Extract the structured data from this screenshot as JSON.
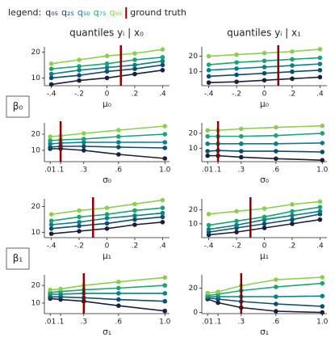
{
  "legend": {
    "title": "legend:",
    "ground_truth": "ground truth"
  },
  "column_titles": [
    "quantiles yᵢ | x₀",
    "quantiles yᵢ | x₁"
  ],
  "row_labels": [
    "β₀",
    "β₁"
  ],
  "chart_data": [
    {
      "type": "line",
      "xlabel": "μ₀",
      "x": [
        -0.4,
        -0.2,
        0,
        0.2,
        0.4
      ],
      "xlim": [
        -0.45,
        0.45
      ],
      "xticks": [
        {
          "value": -0.4,
          "label": "-.4"
        },
        {
          "value": -0.2,
          "label": "-.2"
        },
        0,
        {
          "value": 0.2,
          "label": ".2"
        },
        {
          "value": 0.4,
          "label": ".4"
        }
      ],
      "ylim": [
        7,
        22
      ],
      "yticks": [
        10,
        20
      ],
      "ground_truth": 0.1,
      "ground_truth_color": "#8b0000",
      "series": [
        {
          "name": "q₀₅",
          "color": "#1b1f3b",
          "values": [
            7.5,
            9,
            10,
            11.5,
            13
          ]
        },
        {
          "name": "q₂₅",
          "color": "#0d4e70",
          "values": [
            10,
            11,
            12.5,
            13.5,
            15
          ]
        },
        {
          "name": "q₅₀",
          "color": "#0a7f8a",
          "values": [
            11.5,
            13,
            14,
            15,
            16.5
          ]
        },
        {
          "name": "q₇₅",
          "color": "#17a673",
          "values": [
            13.5,
            14.5,
            15.5,
            17,
            18
          ]
        },
        {
          "name": "q₉₅",
          "color": "#8ccf4d",
          "values": [
            15.5,
            17,
            18.5,
            19.5,
            21
          ]
        }
      ]
    },
    {
      "type": "line",
      "xlabel": "μ₀",
      "x": [
        -0.4,
        -0.2,
        0,
        0.2,
        0.4
      ],
      "xlim": [
        -0.45,
        0.45
      ],
      "xticks": [
        {
          "value": -0.4,
          "label": "-.4"
        },
        {
          "value": -0.2,
          "label": "-.2"
        },
        0,
        {
          "value": 0.2,
          "label": ".2"
        },
        {
          "value": 0.4,
          "label": ".4"
        }
      ],
      "ylim": [
        1,
        26
      ],
      "yticks": [
        10,
        20
      ],
      "ground_truth": 0.1,
      "ground_truth_color": "#8b0000",
      "series": [
        {
          "name": "q₀₅",
          "color": "#1b1f3b",
          "values": [
            3,
            3.5,
            4.5,
            5.5,
            6.5
          ]
        },
        {
          "name": "q₂₅",
          "color": "#0d4e70",
          "values": [
            7,
            8,
            9,
            10,
            11
          ]
        },
        {
          "name": "q₅₀",
          "color": "#0a7f8a",
          "values": [
            11,
            12,
            13,
            14,
            15
          ]
        },
        {
          "name": "q₇₅",
          "color": "#17a673",
          "values": [
            14.5,
            16,
            17,
            18,
            19
          ]
        },
        {
          "name": "q₉₅",
          "color": "#8ccf4d",
          "values": [
            20,
            21,
            22,
            23,
            24.5
          ]
        }
      ]
    },
    {
      "type": "line",
      "xlabel": "σ₀",
      "x": [
        0.01,
        0.1,
        0.3,
        0.6,
        1.0
      ],
      "xlim": [
        -0.04,
        1.04
      ],
      "xticks": [
        {
          "value": 0.01,
          "label": ".01"
        },
        {
          "value": 0.1,
          "label": ".1"
        },
        {
          "value": 0.3,
          "label": ".3"
        },
        {
          "value": 0.6,
          "label": ".6"
        },
        {
          "value": 1.0,
          "label": "1.0"
        }
      ],
      "ylim": [
        3,
        27
      ],
      "yticks": [
        10,
        20
      ],
      "ground_truth": 0.1,
      "ground_truth_color": "#8b0000",
      "series": [
        {
          "name": "q₀₅",
          "color": "#1b1f3b",
          "values": [
            11,
            11,
            10,
            7.5,
            5
          ]
        },
        {
          "name": "q₂₅",
          "color": "#0d4e70",
          "values": [
            12,
            12.5,
            12.5,
            12,
            11.5
          ]
        },
        {
          "name": "q₅₀",
          "color": "#0a7f8a",
          "values": [
            14,
            14.5,
            15,
            15,
            15
          ]
        },
        {
          "name": "q₇₅",
          "color": "#17a673",
          "values": [
            16,
            16.5,
            17,
            18.5,
            20
          ]
        },
        {
          "name": "q₉₅",
          "color": "#8ccf4d",
          "values": [
            18.5,
            19,
            20.5,
            22.5,
            25
          ]
        }
      ]
    },
    {
      "type": "line",
      "xlabel": "σ₀",
      "x": [
        0.01,
        0.1,
        0.3,
        0.6,
        1.0
      ],
      "xlim": [
        -0.04,
        1.04
      ],
      "xticks": [
        {
          "value": 0.01,
          "label": ".01"
        },
        {
          "value": 0.1,
          "label": ".1"
        },
        {
          "value": 0.3,
          "label": ".3"
        },
        {
          "value": 0.6,
          "label": ".6"
        },
        {
          "value": 1.0,
          "label": "1.0"
        }
      ],
      "ylim": [
        1,
        27
      ],
      "yticks": [
        10,
        20
      ],
      "ground_truth": 0.1,
      "ground_truth_color": "#8b0000",
      "series": [
        {
          "name": "q₀₅",
          "color": "#1b1f3b",
          "values": [
            5,
            5,
            4,
            3,
            2
          ]
        },
        {
          "name": "q₂₅",
          "color": "#0d4e70",
          "values": [
            8,
            8.5,
            8,
            8,
            7.5
          ]
        },
        {
          "name": "q₅₀",
          "color": "#0a7f8a",
          "values": [
            13,
            13,
            13,
            13,
            13.5
          ]
        },
        {
          "name": "q₇₅",
          "color": "#17a673",
          "values": [
            18,
            18,
            18,
            18.5,
            20
          ]
        },
        {
          "name": "q₉₅",
          "color": "#8ccf4d",
          "values": [
            22,
            22,
            23,
            24,
            25
          ]
        }
      ]
    },
    {
      "type": "line",
      "xlabel": "μ₁",
      "x": [
        -0.4,
        -0.2,
        0,
        0.2,
        0.4
      ],
      "xlim": [
        -0.45,
        0.45
      ],
      "xticks": [
        {
          "value": -0.4,
          "label": "-.4"
        },
        {
          "value": -0.2,
          "label": "-.2"
        },
        0,
        {
          "value": 0.2,
          "label": ".2"
        },
        {
          "value": 0.4,
          "label": ".4"
        }
      ],
      "ylim": [
        8,
        23
      ],
      "yticks": [
        10,
        20
      ],
      "ground_truth": -0.1,
      "ground_truth_color": "#8b0000",
      "series": [
        {
          "name": "q₀₅",
          "color": "#1b1f3b",
          "values": [
            9.5,
            10.5,
            11.5,
            13,
            14
          ]
        },
        {
          "name": "q₂₅",
          "color": "#0d4e70",
          "values": [
            11.5,
            12.5,
            13.5,
            15,
            16
          ]
        },
        {
          "name": "q₅₀",
          "color": "#0a7f8a",
          "values": [
            13,
            14,
            15.5,
            16.5,
            17.5
          ]
        },
        {
          "name": "q₇₅",
          "color": "#17a673",
          "values": [
            14.5,
            16,
            17,
            18.5,
            19.5
          ]
        },
        {
          "name": "q₉₅",
          "color": "#8ccf4d",
          "values": [
            17,
            18.5,
            19.5,
            21,
            22.5
          ]
        }
      ]
    },
    {
      "type": "line",
      "xlabel": "μ₁",
      "x": [
        -0.4,
        -0.2,
        0,
        0.2,
        0.4
      ],
      "xlim": [
        -0.45,
        0.45
      ],
      "xticks": [
        {
          "value": -0.4,
          "label": "-.4"
        },
        {
          "value": -0.2,
          "label": "-.2"
        },
        0,
        {
          "value": 0.2,
          "label": ".2"
        },
        {
          "value": 0.4,
          "label": ".4"
        }
      ],
      "ylim": [
        0,
        28
      ],
      "yticks": [
        10,
        20
      ],
      "ground_truth": -0.1,
      "ground_truth_color": "#8b0000",
      "series": [
        {
          "name": "q₀₅",
          "color": "#1b1f3b",
          "values": [
            2,
            4,
            7,
            10,
            13
          ]
        },
        {
          "name": "q₂₅",
          "color": "#0d4e70",
          "values": [
            4,
            7,
            10,
            13,
            17
          ]
        },
        {
          "name": "q₅₀",
          "color": "#0a7f8a",
          "values": [
            6,
            9,
            13,
            16,
            19
          ]
        },
        {
          "name": "q₇₅",
          "color": "#17a673",
          "values": [
            9,
            12,
            15,
            19,
            22
          ]
        },
        {
          "name": "q₉₅",
          "color": "#8ccf4d",
          "values": [
            17,
            19,
            21,
            24,
            26
          ]
        }
      ]
    },
    {
      "type": "line",
      "xlabel": "σ₁",
      "x": [
        0.01,
        0.1,
        0.3,
        0.6,
        1.0
      ],
      "xlim": [
        -0.04,
        1.04
      ],
      "xticks": [
        {
          "value": 0.01,
          "label": ".01"
        },
        {
          "value": 0.1,
          "label": ".1"
        },
        {
          "value": 0.3,
          "label": ".3"
        },
        {
          "value": 0.6,
          "label": ".6"
        },
        {
          "value": 1.0,
          "label": "1.0"
        }
      ],
      "ylim": [
        4,
        26
      ],
      "yticks": [
        10,
        20
      ],
      "ground_truth": 0.3,
      "ground_truth_color": "#8b0000",
      "series": [
        {
          "name": "q₀₅",
          "color": "#1b1f3b",
          "values": [
            12.5,
            12,
            11,
            8.5,
            5.5
          ]
        },
        {
          "name": "q₂₅",
          "color": "#0d4e70",
          "values": [
            13.5,
            13.5,
            13,
            12,
            11
          ]
        },
        {
          "name": "q₅₀",
          "color": "#0a7f8a",
          "values": [
            15,
            15,
            15.5,
            15.5,
            15.5
          ]
        },
        {
          "name": "q₇₅",
          "color": "#17a673",
          "values": [
            16,
            16.5,
            17.5,
            18.5,
            20
          ]
        },
        {
          "name": "q₉₅",
          "color": "#8ccf4d",
          "values": [
            17.5,
            18,
            20,
            22,
            24.5
          ]
        }
      ]
    },
    {
      "type": "line",
      "xlabel": "σ₁",
      "x": [
        0.01,
        0.1,
        0.3,
        0.6,
        1.0
      ],
      "xlim": [
        -0.04,
        1.04
      ],
      "xticks": [
        {
          "value": 0.01,
          "label": ".01"
        },
        {
          "value": 0.1,
          "label": ".1"
        },
        {
          "value": 0.3,
          "label": ".3"
        },
        {
          "value": 0.6,
          "label": ".6"
        },
        {
          "value": 1.0,
          "label": "1.0"
        }
      ],
      "ylim": [
        -1,
        31
      ],
      "yticks": [
        0,
        20
      ],
      "ground_truth": 0.3,
      "ground_truth_color": "#8b0000",
      "series": [
        {
          "name": "q₀₅",
          "color": "#1b1f3b",
          "values": [
            11,
            8,
            4,
            1,
            0
          ]
        },
        {
          "name": "q₂₅",
          "color": "#0d4e70",
          "values": [
            12,
            11,
            9,
            7,
            5
          ]
        },
        {
          "name": "q₅₀",
          "color": "#0a7f8a",
          "values": [
            13,
            13,
            13,
            13,
            13.5
          ]
        },
        {
          "name": "q₇₅",
          "color": "#17a673",
          "values": [
            14,
            15,
            18,
            21,
            24
          ]
        },
        {
          "name": "q₉₅",
          "color": "#8ccf4d",
          "values": [
            16,
            17,
            22,
            27,
            29
          ]
        }
      ]
    }
  ]
}
